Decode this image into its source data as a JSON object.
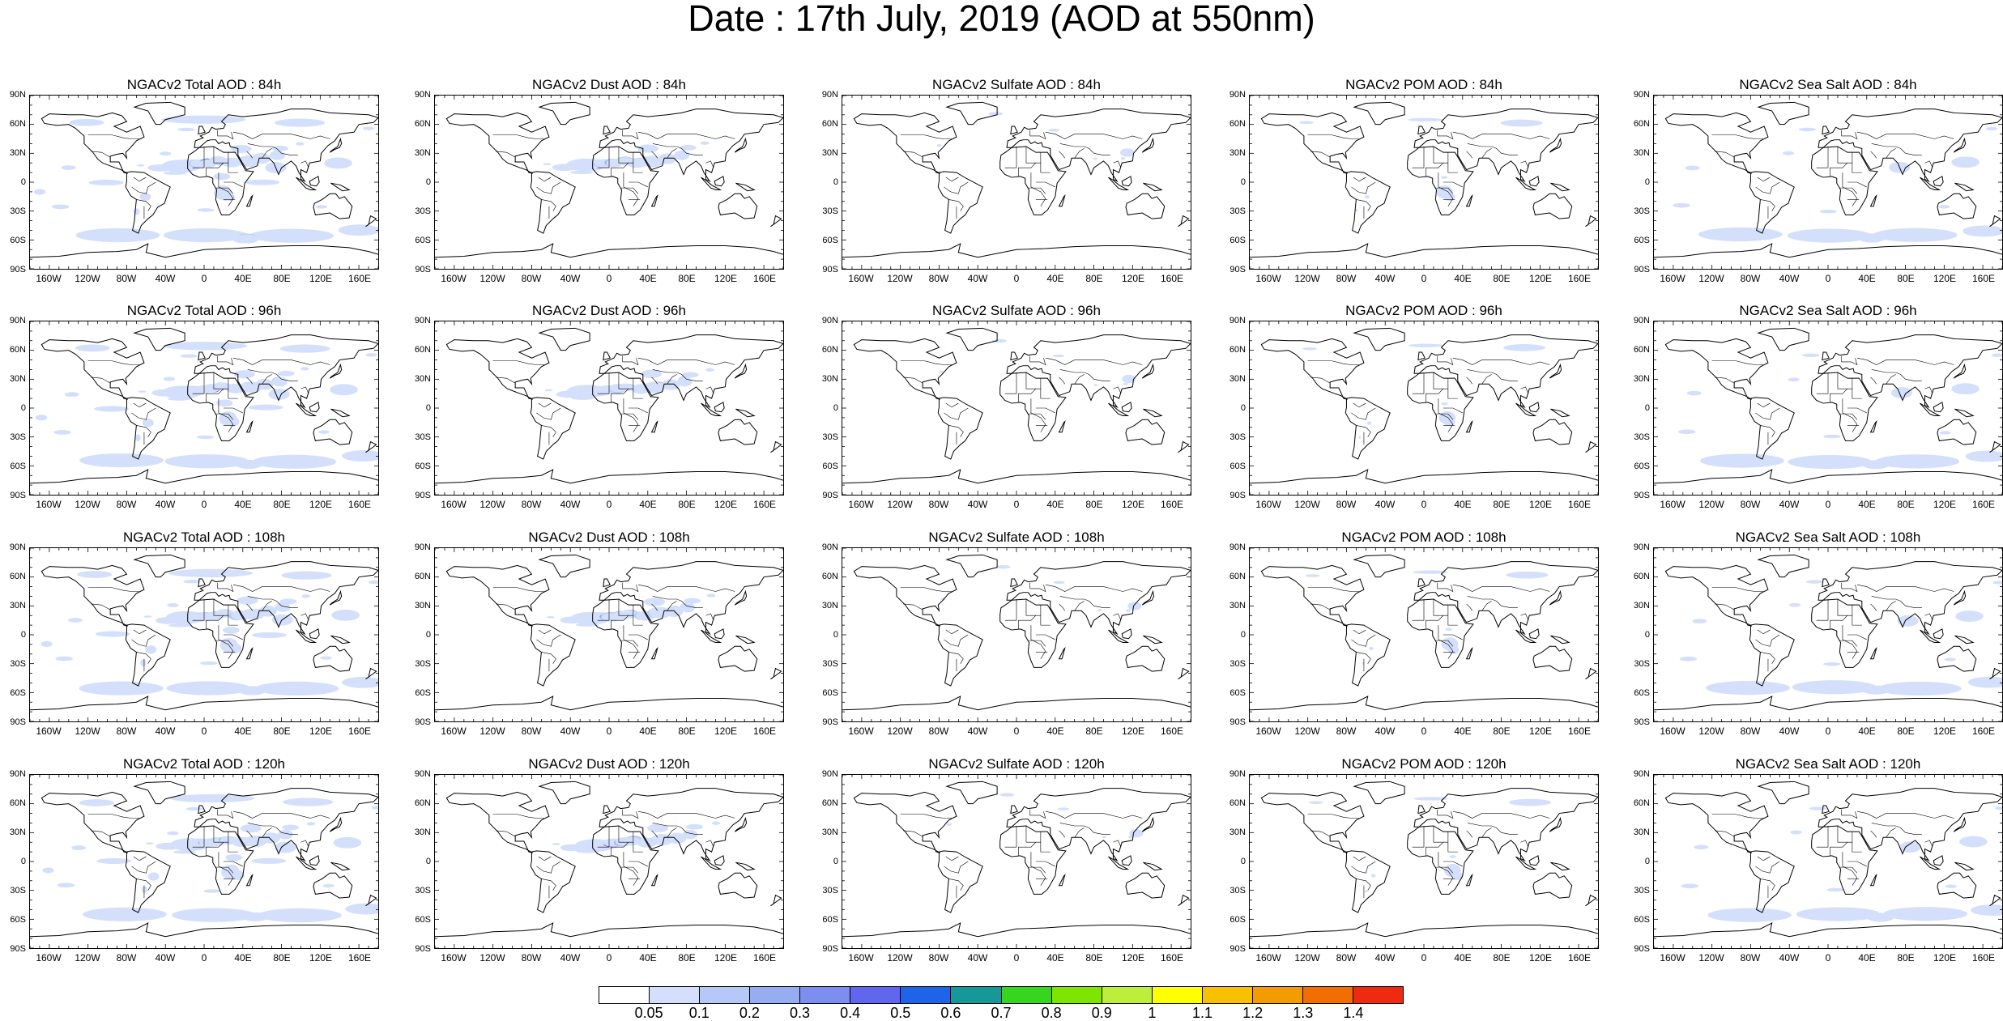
{
  "title": "Date : 17th July, 2019 (AOD at 550nm)",
  "lat_labels": [
    "90N",
    "60N",
    "30N",
    "0",
    "30S",
    "60S",
    "90S"
  ],
  "lon_labels": [
    "160W",
    "120W",
    "80W",
    "40W",
    "0",
    "40E",
    "80E",
    "120E",
    "160E"
  ],
  "panels": [
    {
      "title": "NGACv2 Total AOD : 84h",
      "species": "total",
      "hour": 84
    },
    {
      "title": "NGACv2 Dust AOD : 84h",
      "species": "dust",
      "hour": 84
    },
    {
      "title": "NGACv2 Sulfate AOD : 84h",
      "species": "sulfate",
      "hour": 84
    },
    {
      "title": "NGACv2 POM AOD : 84h",
      "species": "pom",
      "hour": 84
    },
    {
      "title": "NGACv2 Sea Salt AOD : 84h",
      "species": "seasalt",
      "hour": 84
    },
    {
      "title": "NGACv2 Total AOD : 96h",
      "species": "total",
      "hour": 96
    },
    {
      "title": "NGACv2 Dust AOD : 96h",
      "species": "dust",
      "hour": 96
    },
    {
      "title": "NGACv2 Sulfate AOD : 96h",
      "species": "sulfate",
      "hour": 96
    },
    {
      "title": "NGACv2 POM AOD : 96h",
      "species": "pom",
      "hour": 96
    },
    {
      "title": "NGACv2 Sea Salt AOD : 96h",
      "species": "seasalt",
      "hour": 96
    },
    {
      "title": "NGACv2 Total AOD : 108h",
      "species": "total",
      "hour": 108
    },
    {
      "title": "NGACv2 Dust AOD : 108h",
      "species": "dust",
      "hour": 108
    },
    {
      "title": "NGACv2 Sulfate AOD : 108h",
      "species": "sulfate",
      "hour": 108
    },
    {
      "title": "NGACv2 POM AOD : 108h",
      "species": "pom",
      "hour": 108
    },
    {
      "title": "NGACv2 Sea Salt AOD : 108h",
      "species": "seasalt",
      "hour": 108
    },
    {
      "title": "NGACv2 Total AOD : 120h",
      "species": "total",
      "hour": 120
    },
    {
      "title": "NGACv2 Dust AOD : 120h",
      "species": "dust",
      "hour": 120
    },
    {
      "title": "NGACv2 Sulfate AOD : 120h",
      "species": "sulfate",
      "hour": 120
    },
    {
      "title": "NGACv2 POM AOD : 120h",
      "species": "pom",
      "hour": 120
    },
    {
      "title": "NGACv2 Sea Salt  AOD : 120h",
      "species": "seasalt",
      "hour": 120
    }
  ],
  "colorbar": {
    "labels": [
      "0.05",
      "0.1",
      "0.2",
      "0.3",
      "0.4",
      "0.5",
      "0.6",
      "0.7",
      "0.8",
      "0.9",
      "1",
      "1.1",
      "1.2",
      "1.3",
      "1.4"
    ],
    "colors": [
      "#ffffff",
      "#d4e0fb",
      "#b5c8f7",
      "#97adf2",
      "#7c8ff1",
      "#6166ee",
      "#1e63e8",
      "#169898",
      "#37d420",
      "#7de500",
      "#bdee3c",
      "#ffff00",
      "#f7c000",
      "#f39c00",
      "#f06f00",
      "#ee2a10"
    ]
  }
}
